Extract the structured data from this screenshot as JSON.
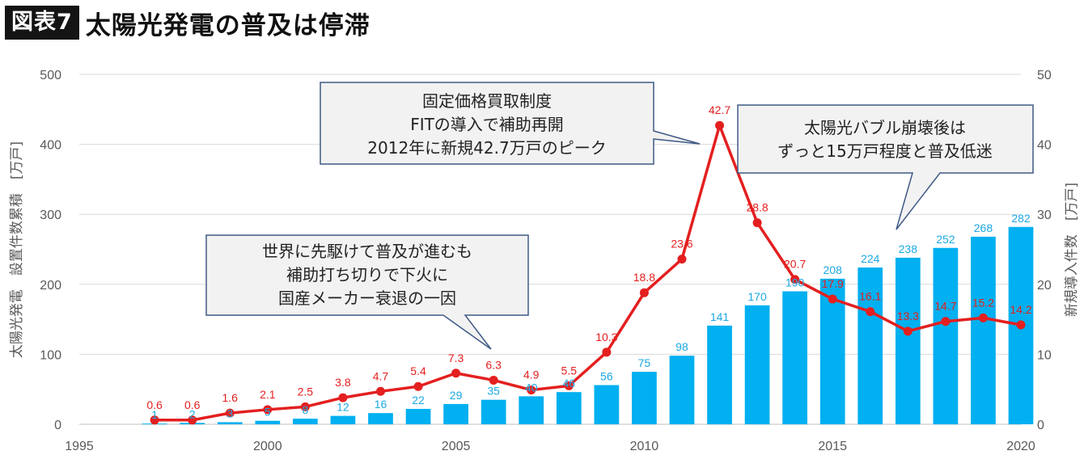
{
  "header": {
    "badge": "図表7",
    "title": "太陽光発電の普及は停滞"
  },
  "chart_data": {
    "type": "bar",
    "combo": "bar+line",
    "x": [
      1997,
      1998,
      1999,
      2000,
      2001,
      2002,
      2003,
      2004,
      2005,
      2006,
      2007,
      2008,
      2009,
      2010,
      2011,
      2012,
      2013,
      2014,
      2015,
      2016,
      2017,
      2018,
      2019,
      2020
    ],
    "series": [
      {
        "name": "",
        "axis": "left",
        "type": "bar",
        "color": "#00b0f0",
        "values": [
          1,
          2,
          3,
          5,
          8,
          12,
          16,
          22,
          29,
          35,
          40,
          46,
          56,
          75,
          98,
          141,
          170,
          190,
          208,
          224,
          238,
          252,
          268,
          282
        ]
      },
      {
        "name": "",
        "axis": "right",
        "type": "line",
        "color": "#e41f1f",
        "values": [
          0.6,
          0.6,
          1.6,
          2.1,
          2.5,
          3.8,
          4.7,
          5.4,
          7.3,
          6.3,
          4.9,
          5.5,
          10.3,
          18.8,
          23.6,
          42.7,
          28.8,
          20.7,
          17.9,
          16.1,
          13.3,
          14.7,
          15.2,
          14.2
        ]
      }
    ],
    "xlim": [
      1995,
      2020
    ],
    "xticks": [
      "1995",
      "2000",
      "2005",
      "2010",
      "2015",
      "2020"
    ],
    "ylim_left": [
      0,
      500
    ],
    "yticks_left": [
      "0",
      "100",
      "200",
      "300",
      "400",
      "500"
    ],
    "ylim_right": [
      0,
      50
    ],
    "yticks_right": [
      "0",
      "10",
      "20",
      "30",
      "40",
      "50"
    ],
    "ylabel_left": "太陽光発電　設置件数累積　[万戸]",
    "ylabel_right": "新規導入件数　[万戸]",
    "grid": true,
    "annotations": [
      {
        "lines": [
          "固定価格買取制度",
          "FITの導入で補助再開",
          "2012年に新規42.7万戸のピーク"
        ]
      },
      {
        "lines": [
          "太陽光バブル崩壊後は",
          "ずっと15万戸程度と普及低迷"
        ]
      },
      {
        "lines": [
          "世界に先駆けて普及が進むも",
          "補助打ち切りで下火に",
          "国産メーカー衰退の一因"
        ]
      }
    ]
  }
}
